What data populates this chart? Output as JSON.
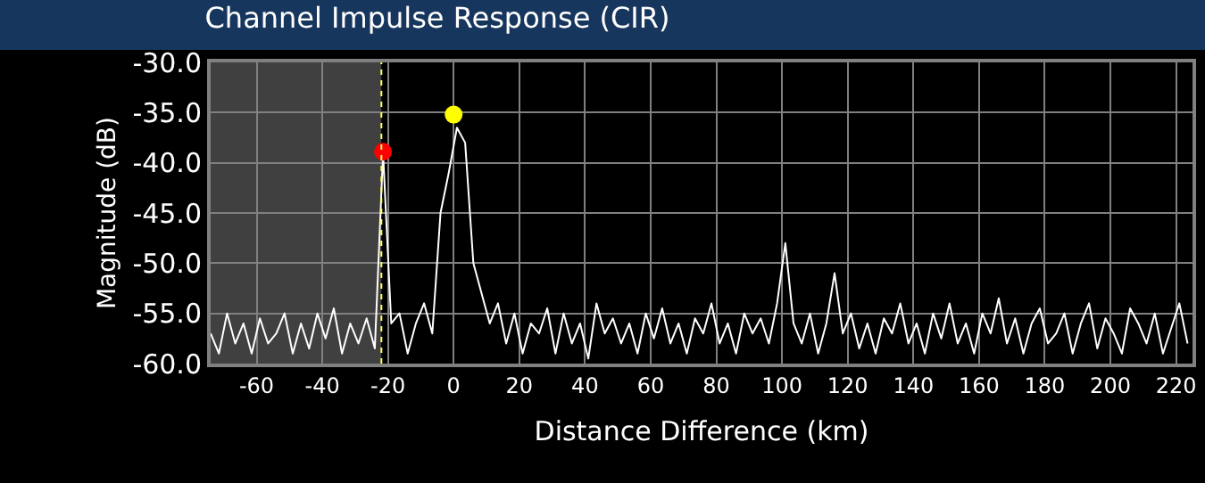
{
  "chart_data": {
    "type": "line",
    "title": "Channel Impulse Response (CIR)",
    "xlabel": "Distance Difference (km)",
    "ylabel": "Magnitude (dB)",
    "xlim": [
      -74,
      225
    ],
    "xticks": [
      -60,
      -40,
      -20,
      0,
      20,
      40,
      60,
      80,
      100,
      120,
      140,
      160,
      180,
      200,
      220
    ],
    "ylim": [
      -60,
      -30
    ],
    "yticks": [
      {
        "value": -60,
        "label": "-60.0"
      },
      {
        "value": -55,
        "label": "-55.0"
      },
      {
        "value": -50,
        "label": "-50.0"
      },
      {
        "value": -45,
        "label": "-45.0"
      },
      {
        "value": -40,
        "label": "-40.0"
      },
      {
        "value": -35,
        "label": "-35.0"
      },
      {
        "value": -30,
        "label": "-30.0"
      }
    ],
    "grid": true,
    "bands": [
      {
        "axis": "x",
        "from": -74,
        "to": -22,
        "color": "#404040"
      }
    ],
    "ref_lines": [
      {
        "axis": "x",
        "value": -22,
        "color": "#ffff66",
        "line_style": "dotted"
      }
    ],
    "series": [
      {
        "color": "#ffffff",
        "marker": "none",
        "x": [
          -74,
          -71.5,
          -69,
          -66.5,
          -64,
          -61.5,
          -59,
          -56.5,
          -54,
          -51.5,
          -49,
          -46.5,
          -44,
          -41.5,
          -39,
          -36.5,
          -34,
          -31.5,
          -29,
          -26.5,
          -24,
          -21.5,
          -19,
          -16.5,
          -14,
          -11.5,
          -9,
          -6.5,
          -4,
          -1.5,
          1,
          3.5,
          6,
          8.5,
          11,
          13.5,
          16,
          18.5,
          21,
          23.5,
          26,
          28.5,
          31,
          33.5,
          36,
          38.5,
          41,
          43.5,
          46,
          48.5,
          51,
          53.5,
          56,
          58.5,
          61,
          63.5,
          66,
          68.5,
          71,
          73.5,
          76,
          78.5,
          81,
          83.5,
          86,
          88.5,
          91,
          93.5,
          96,
          98.5,
          101,
          103.5,
          106,
          108.5,
          111,
          113.5,
          116,
          118.5,
          121,
          123.5,
          126,
          128.5,
          131,
          133.5,
          136,
          138.5,
          141,
          143.5,
          146,
          148.5,
          151,
          153.5,
          156,
          158.5,
          161,
          163.5,
          166,
          168.5,
          171,
          173.5,
          176,
          178.5,
          181,
          183.5,
          186,
          188.5,
          191,
          193.5,
          196,
          198.5,
          201,
          203.5,
          206,
          208.5,
          211,
          213.5,
          216,
          218.5,
          221,
          223.5
        ],
        "values": [
          -57,
          -59,
          -55,
          -58,
          -56,
          -59,
          -55.5,
          -58,
          -57,
          -55,
          -59,
          -56,
          -58.5,
          -55,
          -57.5,
          -54.5,
          -59,
          -56,
          -58,
          -55.5,
          -58.5,
          -39,
          -56,
          -55,
          -59,
          -56,
          -54,
          -57,
          -45,
          -41,
          -36.5,
          -38,
          -50,
          -53,
          -56,
          -54,
          -58,
          -55,
          -59,
          -56,
          -57,
          -54.5,
          -59,
          -55,
          -58,
          -56,
          -59.5,
          -54,
          -57,
          -55.5,
          -58,
          -56,
          -59,
          -55,
          -57.5,
          -54.5,
          -58,
          -56,
          -59,
          -55.5,
          -57,
          -54,
          -58,
          -56,
          -59,
          -55,
          -57,
          -55.5,
          -58,
          -54,
          -48,
          -56,
          -58,
          -55,
          -59,
          -56,
          -51,
          -57,
          -55,
          -58.5,
          -56,
          -59,
          -55.5,
          -57,
          -54,
          -58,
          -56,
          -59,
          -55,
          -57.5,
          -54,
          -58,
          -56,
          -59,
          -55,
          -57,
          -53.5,
          -58,
          -55.5,
          -59,
          -56,
          -54.5,
          -58,
          -57,
          -55,
          -59,
          -56,
          -54,
          -58.5,
          -55.5,
          -57,
          -59,
          -54.5,
          -56,
          -58,
          -55,
          -59,
          -56.5,
          -54,
          -58
        ]
      },
      {
        "type": "scatter",
        "color": "#ffff00",
        "marker": "circle",
        "x": [
          0
        ],
        "values": [
          -35.2
        ]
      },
      {
        "type": "scatter",
        "color": "#ff0000",
        "marker": "circle",
        "x": [
          -21.5
        ],
        "values": [
          -38.9
        ]
      }
    ]
  }
}
